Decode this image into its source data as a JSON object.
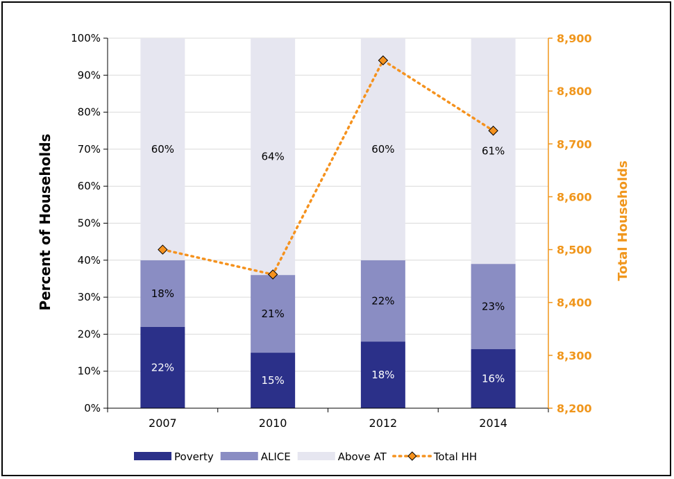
{
  "colors": {
    "poverty": "#2b3089",
    "alice": "#8a8dc3",
    "above_at": "#e6e6f0",
    "total_hh": "#f5921e",
    "right_axis": "#f0961c",
    "grid": "#d9d9d9"
  },
  "chart_data": {
    "type": "bar",
    "stacked": true,
    "categories": [
      "2007",
      "2010",
      "2012",
      "2014"
    ],
    "series": [
      {
        "name": "Poverty",
        "values": [
          22,
          15,
          18,
          16
        ],
        "labels": [
          "22%",
          "15%",
          "18%",
          "16%"
        ]
      },
      {
        "name": "ALICE",
        "values": [
          18,
          21,
          22,
          23
        ],
        "labels": [
          "18%",
          "21%",
          "22%",
          "23%"
        ]
      },
      {
        "name": "Above AT",
        "values": [
          60,
          64,
          60,
          61
        ],
        "labels": [
          "60%",
          "64%",
          "60%",
          "61%"
        ]
      }
    ],
    "line_series": {
      "name": "Total HH",
      "axis": "right",
      "style": "dotted",
      "marker": "diamond",
      "values": [
        8500,
        8453,
        8858,
        8725
      ]
    },
    "ylabel": "Percent of Households",
    "y2label": "Total Households",
    "ylim": [
      0,
      100
    ],
    "y2lim": [
      8200,
      8900
    ],
    "yticks": [
      "0%",
      "10%",
      "20%",
      "30%",
      "40%",
      "50%",
      "60%",
      "70%",
      "80%",
      "90%",
      "100%"
    ],
    "y2ticks": [
      "8,200",
      "8,300",
      "8,400",
      "8,500",
      "8,600",
      "8,700",
      "8,800",
      "8,900"
    ],
    "grid": true,
    "legend_position": "bottom"
  }
}
